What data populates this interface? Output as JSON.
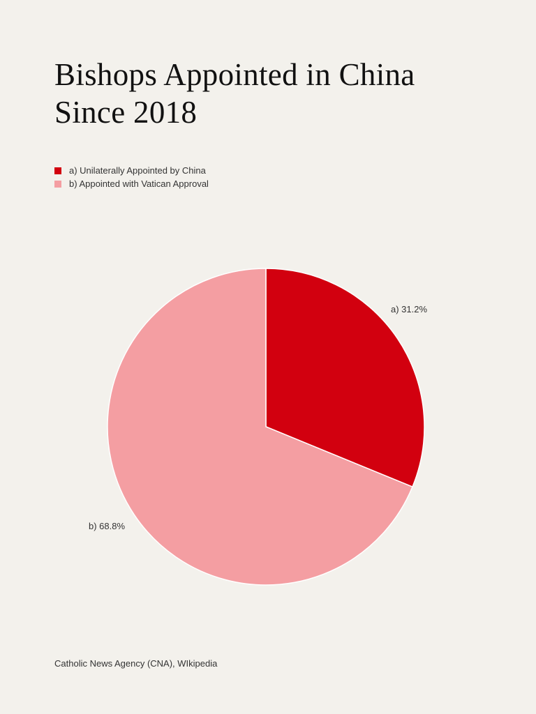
{
  "title_lines": [
    "Bishops Appointed in China",
    "Since 2018"
  ],
  "chart_data": {
    "type": "pie",
    "title": "Bishops Appointed in China Since 2018",
    "categories": [
      "a) Unilaterally Appointed by China",
      "b) Appointed with Vatican Approval"
    ],
    "values": [
      31.2,
      68.8
    ],
    "labels": [
      "a) 31.2%",
      "b) 68.8%"
    ],
    "colors": [
      "#d2000f",
      "#f49ea2"
    ],
    "legend": "top-left",
    "start": "top, clockwise"
  },
  "source": "Catholic News Agency (CNA), WIkipedia"
}
